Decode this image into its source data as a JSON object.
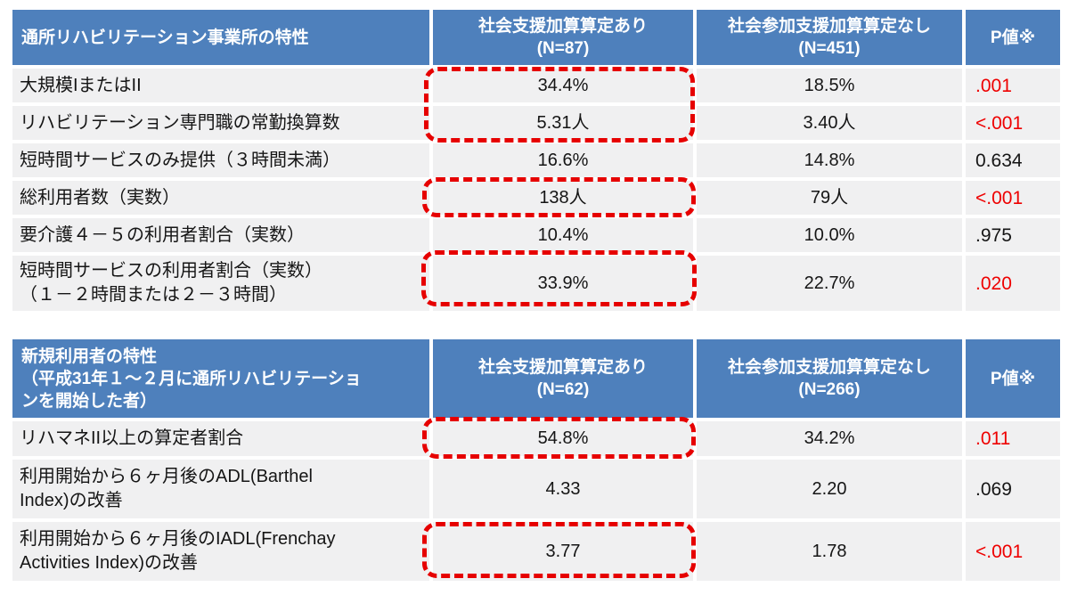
{
  "colors": {
    "header_bg": "#4e80bc",
    "header_text": "#ffffff",
    "row_bg": "#f0f0f1",
    "body_text": "#151515",
    "significant_red": "#ee0000",
    "highlight_outline_red": "#e60000"
  },
  "table1": {
    "corner_header": "通所リハビリテーション事業所の特性",
    "col_with": "社会支援加算算定あり\n(N=87)",
    "col_without": "社会参加支援加算算定なし\n(N=451)",
    "col_p": "P値※",
    "rows": [
      {
        "label": "大規模IまたはII",
        "with_value": "34.4%",
        "without_value": "18.5%",
        "p_value": ".001",
        "p_red": true,
        "highlighted": true
      },
      {
        "label": "リハビリテーション専門職の常勤換算数",
        "with_value": "5.31人",
        "without_value": "3.40人",
        "p_value": "<.001",
        "p_red": true,
        "highlighted": true
      },
      {
        "label": "短時間サービスのみ提供（３時間未満）",
        "with_value": "16.6%",
        "without_value": "14.8%",
        "p_value": "0.634",
        "p_red": false,
        "highlighted": false
      },
      {
        "label": "総利用者数（実数）",
        "with_value": "138人",
        "without_value": "79人",
        "p_value": "<.001",
        "p_red": true,
        "highlighted": true
      },
      {
        "label": "要介護４－５の利用者割合（実数）",
        "with_value": "10.4%",
        "without_value": "10.0%",
        "p_value": ".975",
        "p_red": false,
        "highlighted": false
      },
      {
        "label": "短時間サービスの利用者割合（実数）\n （１－２時間または２－３時間）",
        "with_value": "33.9%",
        "without_value": "22.7%",
        "p_value": ".020",
        "p_red": true,
        "highlighted": true
      }
    ]
  },
  "table2": {
    "corner_header": "新規利用者の特性\n （平成31年１～２月に通所リハビリテーショ\nンを開始した者）",
    "col_with": "社会支援加算算定あり\n(N=62)",
    "col_without": "社会参加支援加算算定なし\n(N=266)",
    "col_p": "P値※",
    "rows": [
      {
        "label": "リハマネII以上の算定者割合",
        "with_value": "54.8%",
        "without_value": "34.2%",
        "p_value": ".011",
        "p_red": true,
        "highlighted": true
      },
      {
        "label": "利用開始から６ヶ月後のADL(Barthel\nIndex)の改善",
        "with_value": "4.33",
        "without_value": "2.20",
        "p_value": ".069",
        "p_red": false,
        "highlighted": false
      },
      {
        "label": "利用開始から６ヶ月後のIADL(Frenchay\nActivities Index)の改善",
        "with_value": "3.77",
        "without_value": "1.78",
        "p_value": "<.001",
        "p_red": true,
        "highlighted": true
      }
    ]
  }
}
